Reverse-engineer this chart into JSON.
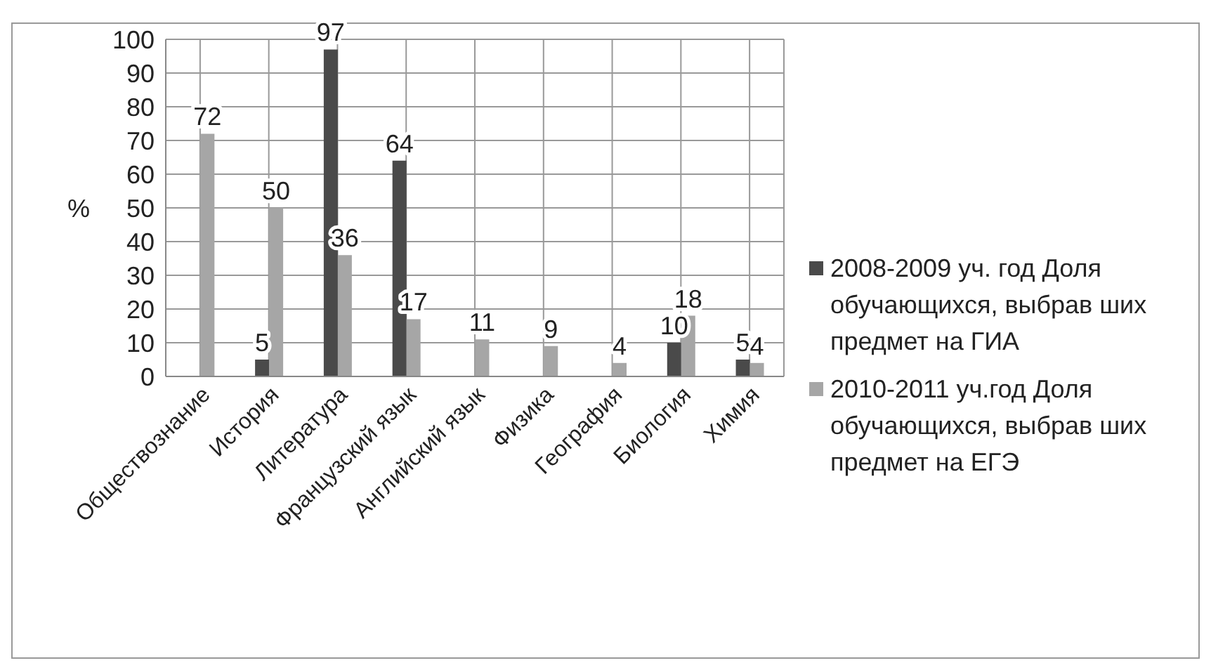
{
  "chart_data": {
    "type": "bar",
    "ylabel": "%",
    "categories": [
      "Обществознание",
      "История",
      "Литература",
      "Французский язык",
      "Английский язык",
      "Физика",
      "География",
      "Биология",
      "Химия"
    ],
    "series": [
      {
        "name": "2008-2009 уч. год Доля обучающихся, выбрав ших предмет на ГИА",
        "color": "#4a4a4a",
        "values": [
          null,
          5,
          97,
          64,
          null,
          null,
          null,
          10,
          5
        ]
      },
      {
        "name": "2010-2011 уч.год Доля обучающихся, выбрав ших предмет на ЕГЭ",
        "color": "#a6a6a6",
        "values": [
          72,
          50,
          36,
          17,
          11,
          9,
          4,
          18,
          4
        ]
      }
    ],
    "ylim": [
      0,
      100
    ],
    "yticks": [
      0,
      10,
      20,
      30,
      40,
      50,
      60,
      70,
      80,
      90,
      100
    ],
    "grid": true,
    "legend": "right",
    "data_labels": true
  }
}
